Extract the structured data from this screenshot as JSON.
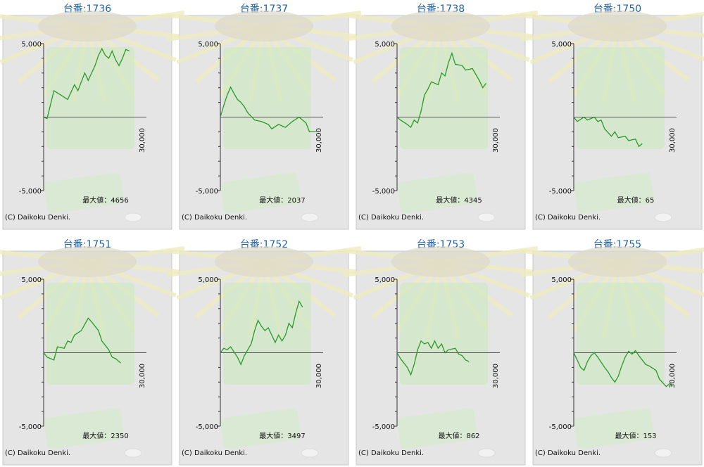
{
  "chart_data": [
    {
      "type": "line",
      "title": "台番:1736",
      "annotation": "最大値：4656",
      "copyright": "(C) Daikoku Denki.",
      "color": "#2a9a2a",
      "x": [
        0,
        1000,
        3000,
        5000,
        7000,
        9000,
        10000,
        12000,
        13000,
        15000,
        16000,
        17000,
        18000,
        19000,
        20000,
        21000,
        22000,
        23000,
        24000,
        25000
      ],
      "values": [
        0,
        -100,
        1800,
        1500,
        1200,
        2200,
        1800,
        3000,
        2500,
        3500,
        4200,
        4656,
        4200,
        4000,
        4500,
        3900,
        3500,
        4000,
        4600,
        4500
      ],
      "xlim": [
        0,
        30000
      ],
      "xticks": [
        {
          "value": 30000,
          "label": "30,000"
        }
      ],
      "ylim": [
        -5000,
        5000
      ],
      "yticks": [
        {
          "value": 5000,
          "label": "5,000"
        },
        {
          "value": -5000,
          "label": "-5,000"
        }
      ],
      "minor_yticks": [
        -4000,
        -3000,
        -2000,
        -1000,
        1000,
        2000,
        3000,
        4000
      ]
    },
    {
      "type": "line",
      "title": "台番:1737",
      "annotation": "最大値：2037",
      "copyright": "(C) Daikoku Denki.",
      "color": "#2a9a2a",
      "x": [
        0,
        1000,
        2000,
        3000,
        4000,
        5000,
        6000,
        7000,
        8000,
        10000,
        12000,
        14000,
        15000,
        17000,
        19000,
        21000,
        23000,
        25000,
        26000,
        28000
      ],
      "values": [
        0,
        800,
        1500,
        2037,
        1600,
        1200,
        1000,
        700,
        300,
        -200,
        -300,
        -500,
        -800,
        -500,
        -700,
        -300,
        0,
        -400,
        -1000,
        -1000
      ],
      "xlim": [
        0,
        30000
      ],
      "xticks": [
        {
          "value": 30000,
          "label": "30,000"
        }
      ],
      "ylim": [
        -5000,
        5000
      ],
      "yticks": [
        {
          "value": 5000,
          "label": "5,000"
        },
        {
          "value": -5000,
          "label": "-5,000"
        }
      ],
      "minor_yticks": [
        -4000,
        -3000,
        -2000,
        -1000,
        1000,
        2000,
        3000,
        4000
      ]
    },
    {
      "type": "line",
      "title": "台番:1738",
      "annotation": "最大値：4345",
      "copyright": "(C) Daikoku Denki.",
      "color": "#2a9a2a",
      "x": [
        0,
        1000,
        3000,
        4000,
        5000,
        6000,
        7000,
        8000,
        9000,
        10000,
        12000,
        13000,
        14000,
        15000,
        16000,
        17000,
        19000,
        20000,
        22000,
        24000,
        25000,
        26000
      ],
      "values": [
        0,
        -200,
        -500,
        -700,
        -200,
        -400,
        400,
        1500,
        1900,
        2400,
        2200,
        3000,
        2800,
        3700,
        4345,
        3600,
        3500,
        3200,
        3300,
        2500,
        2000,
        2300
      ],
      "xlim": [
        0,
        30000
      ],
      "xticks": [
        {
          "value": 30000,
          "label": "30,000"
        }
      ],
      "ylim": [
        -5000,
        5000
      ],
      "yticks": [
        {
          "value": 5000,
          "label": "5,000"
        },
        {
          "value": -5000,
          "label": "-5,000"
        }
      ],
      "minor_yticks": [
        -4000,
        -3000,
        -2000,
        -1000,
        1000,
        2000,
        3000,
        4000
      ]
    },
    {
      "type": "line",
      "title": "台番:1750",
      "annotation": "最大値：65",
      "copyright": "(C) Daikoku Denki.",
      "color": "#2a9a2a",
      "x": [
        0,
        1000,
        3000,
        4000,
        6000,
        7000,
        8000,
        9000,
        11000,
        12000,
        13000,
        15000,
        16000,
        18000,
        19000,
        20000
      ],
      "values": [
        0,
        -300,
        0,
        -200,
        0,
        -300,
        -200,
        -800,
        -1300,
        -1000,
        -1400,
        -1300,
        -1600,
        -1500,
        -2000,
        -1800
      ],
      "xlim": [
        0,
        30000
      ],
      "xticks": [
        {
          "value": 30000,
          "label": "30,000"
        }
      ],
      "ylim": [
        -5000,
        5000
      ],
      "yticks": [
        {
          "value": 5000,
          "label": "5,000"
        },
        {
          "value": -5000,
          "label": "-5,000"
        }
      ],
      "minor_yticks": [
        -4000,
        -3000,
        -2000,
        -1000,
        1000,
        2000,
        3000,
        4000
      ]
    },
    {
      "type": "line",
      "title": "台番:1751",
      "annotation": "最大値：2350",
      "copyright": "(C) Daikoku Denki.",
      "color": "#2a9a2a",
      "x": [
        0,
        1000,
        3000,
        4000,
        6000,
        7000,
        8000,
        9000,
        11000,
        13000,
        14000,
        16000,
        17000,
        19000,
        20000,
        21000,
        22500
      ],
      "values": [
        0,
        -300,
        -500,
        400,
        300,
        800,
        700,
        1200,
        1500,
        2350,
        2100,
        1500,
        800,
        200,
        -300,
        -400,
        -700
      ],
      "xlim": [
        0,
        30000
      ],
      "xticks": [
        {
          "value": 30000,
          "label": "30,000"
        }
      ],
      "ylim": [
        -5000,
        5000
      ],
      "yticks": [
        {
          "value": 5000,
          "label": "5,000"
        },
        {
          "value": -5000,
          "label": "-5,000"
        }
      ],
      "minor_yticks": [
        -4000,
        -3000,
        -2000,
        -1000,
        1000,
        2000,
        3000,
        4000
      ]
    },
    {
      "type": "line",
      "title": "台番:1752",
      "annotation": "最大値：3497",
      "copyright": "(C) Daikoku Denki.",
      "color": "#2a9a2a",
      "x": [
        0,
        1000,
        2000,
        3000,
        5000,
        6000,
        7000,
        9000,
        10000,
        11000,
        12000,
        13000,
        14000,
        16000,
        17000,
        18000,
        19000,
        20000,
        21000,
        22000,
        23000,
        24000
      ],
      "values": [
        0,
        300,
        200,
        400,
        -300,
        -800,
        -200,
        600,
        1500,
        2200,
        1800,
        1500,
        1700,
        700,
        1200,
        800,
        1200,
        2000,
        1700,
        2700,
        3497,
        3100
      ],
      "xlim": [
        0,
        30000
      ],
      "xticks": [
        {
          "value": 30000,
          "label": "30,000"
        }
      ],
      "ylim": [
        -5000,
        5000
      ],
      "yticks": [
        {
          "value": 5000,
          "label": "5,000"
        },
        {
          "value": -5000,
          "label": "-5,000"
        }
      ],
      "minor_yticks": [
        -4000,
        -3000,
        -2000,
        -1000,
        1000,
        2000,
        3000,
        4000
      ]
    },
    {
      "type": "line",
      "title": "台番:1753",
      "annotation": "最大値：862",
      "copyright": "(C) Daikoku Denki.",
      "color": "#2a9a2a",
      "x": [
        0,
        1000,
        3000,
        4000,
        5000,
        6000,
        7000,
        8000,
        9000,
        10000,
        11000,
        12000,
        13000,
        14000,
        15000,
        17000,
        18000,
        19000,
        20000,
        21000
      ],
      "values": [
        0,
        -400,
        -1000,
        -1500,
        -800,
        200,
        800,
        600,
        700,
        300,
        800,
        300,
        600,
        0,
        200,
        300,
        -100,
        -200,
        -500,
        -600
      ],
      "xlim": [
        0,
        30000
      ],
      "xticks": [
        {
          "value": 30000,
          "label": "30,000"
        }
      ],
      "ylim": [
        -5000,
        5000
      ],
      "yticks": [
        {
          "value": 5000,
          "label": "5,000"
        },
        {
          "value": -5000,
          "label": "-5,000"
        }
      ],
      "minor_yticks": [
        -4000,
        -3000,
        -2000,
        -1000,
        1000,
        2000,
        3000,
        4000
      ]
    },
    {
      "type": "line",
      "title": "台番:1755",
      "annotation": "最大値：153",
      "copyright": "(C) Daikoku Denki.",
      "color": "#2a9a2a",
      "x": [
        0,
        1000,
        2000,
        3000,
        4000,
        5000,
        6000,
        7000,
        9000,
        10000,
        11000,
        12000,
        13000,
        14000,
        15000,
        16000,
        17000,
        18000,
        19000,
        21000,
        22000,
        24000,
        25000,
        27000,
        28000,
        29000
      ],
      "values": [
        0,
        -500,
        -1000,
        -1200,
        -600,
        -200,
        0,
        -300,
        -1000,
        -1300,
        -1700,
        -2000,
        -1600,
        -900,
        -300,
        100,
        -100,
        150,
        -200,
        -800,
        -900,
        -1200,
        -1800,
        -2300,
        -2100,
        -2200
      ],
      "xlim": [
        0,
        30000
      ],
      "xticks": [
        {
          "value": 30000,
          "label": "30,000"
        }
      ],
      "ylim": [
        -5000,
        5000
      ],
      "yticks": [
        {
          "value": 5000,
          "label": "5,000"
        },
        {
          "value": -5000,
          "label": "-5,000"
        }
      ],
      "minor_yticks": [
        -4000,
        -3000,
        -2000,
        -1000,
        1000,
        2000,
        3000,
        4000
      ]
    }
  ]
}
